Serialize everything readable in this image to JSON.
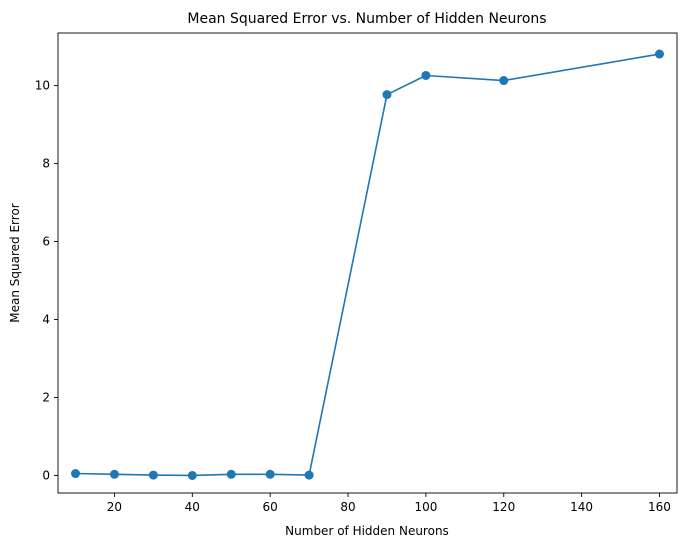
{
  "chart_data": {
    "type": "line",
    "title": "Mean Squared Error vs. Number of Hidden Neurons",
    "xlabel": "Number of Hidden Neurons",
    "ylabel": "Mean Squared Error",
    "xlim": [
      5.5,
      164.5
    ],
    "ylim": [
      -0.45,
      11.35
    ],
    "xticks": [
      20,
      40,
      60,
      80,
      100,
      120,
      140,
      160
    ],
    "yticks": [
      0,
      2,
      4,
      6,
      8,
      10
    ],
    "grid": false,
    "legend": "none",
    "marker": "circle",
    "color": "#1f77b4",
    "series": [
      {
        "x": [
          10,
          20,
          30,
          40,
          50,
          60,
          70,
          90,
          100,
          120,
          160
        ],
        "y": [
          0.05,
          0.03,
          0.01,
          0.0,
          0.03,
          0.03,
          0.01,
          9.77,
          10.26,
          10.13,
          10.81
        ]
      }
    ]
  }
}
